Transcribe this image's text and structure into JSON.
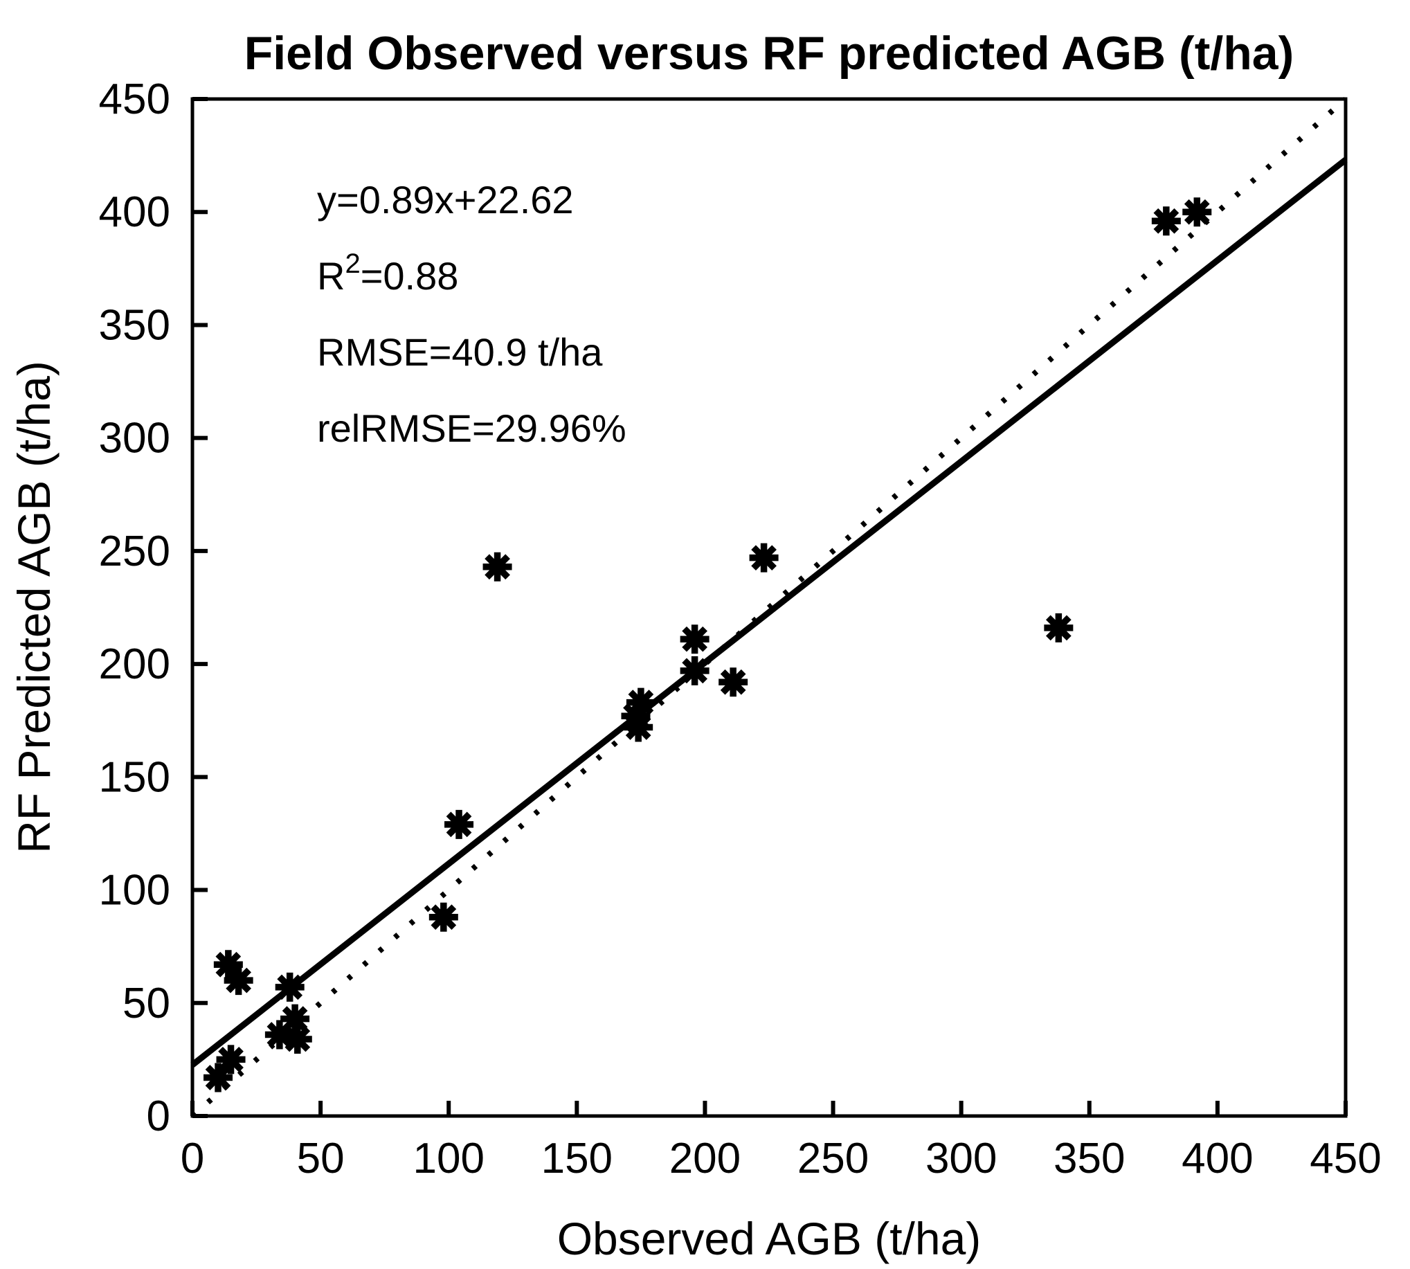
{
  "figure": {
    "background": "#ffffff",
    "ink_color": "#000000"
  },
  "chart_data": {
    "type": "scatter",
    "title": "Field Observed versus RF predicted AGB (t/ha)",
    "xlabel": "Observed AGB (t/ha)",
    "ylabel": "RF Predicted AGB (t/ha)",
    "xlim": [
      0,
      450
    ],
    "ylim": [
      0,
      450
    ],
    "xticks": [
      0,
      50,
      100,
      150,
      200,
      250,
      300,
      350,
      400,
      450
    ],
    "yticks": [
      0,
      50,
      100,
      150,
      200,
      250,
      300,
      350,
      400,
      450
    ],
    "grid": false,
    "legend_position": "none",
    "marker": "asterisk",
    "marker_color": "#000000",
    "points": [
      [
        10,
        17
      ],
      [
        15,
        25
      ],
      [
        14,
        67
      ],
      [
        18,
        60
      ],
      [
        34,
        36
      ],
      [
        41,
        34
      ],
      [
        40,
        43
      ],
      [
        38,
        57
      ],
      [
        98,
        88
      ],
      [
        104,
        129
      ],
      [
        119,
        243
      ],
      [
        173,
        177
      ],
      [
        174,
        172
      ],
      [
        175,
        183
      ],
      [
        196,
        197
      ],
      [
        196,
        211
      ],
      [
        211,
        192
      ],
      [
        223,
        247
      ],
      [
        338,
        216
      ],
      [
        380,
        396
      ],
      [
        392,
        400
      ]
    ],
    "fit_line": {
      "style": "solid",
      "slope": 0.89,
      "intercept": 22.62
    },
    "identity_line": {
      "style": "dotted",
      "from": [
        0,
        0
      ],
      "to": [
        450,
        450
      ]
    },
    "stats": {
      "equation": "y=0.89x+22.62",
      "r_squared": "0.88",
      "rmse": "40.9 t/ha",
      "rel_rmse": "29.96%"
    },
    "annotation_lines": [
      [
        {
          "t": "y=0.89x+22.62"
        }
      ],
      [
        {
          "t": "R"
        },
        {
          "t": "2",
          "sup": true
        },
        {
          "t": "=0.88"
        }
      ],
      [
        {
          "t": "RMSE=40.9 t/ha"
        }
      ],
      [
        {
          "t": "relRMSE=29.96%"
        }
      ]
    ]
  }
}
